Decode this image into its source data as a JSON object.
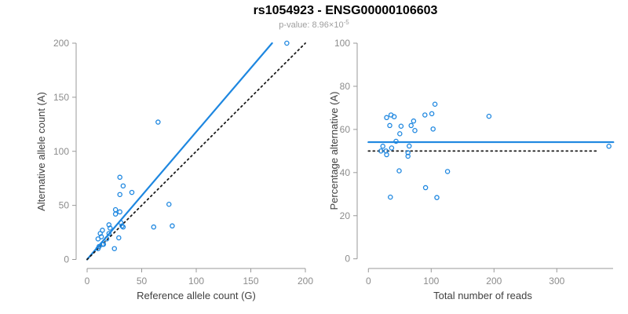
{
  "header": {
    "title": "rs1054923 - ENSG00000106603",
    "pvalue_prefix": "p-value: 8.96×10",
    "pvalue_exponent": "-5"
  },
  "colors": {
    "point": "#1E87E0",
    "fit_line": "#1E87E0",
    "identity_line": "#1A1A1A",
    "axis": "#999999",
    "tick_label": "#8C8C8C",
    "axis_title": "#404040",
    "title": "#000000",
    "subtitle": "#9E9E9E",
    "background": "#FFFFFF"
  },
  "chart_data": [
    {
      "type": "scatter",
      "panel": "left",
      "title": "",
      "xlabel": "Reference allele count (G)",
      "ylabel": "Alternative allele count (A)",
      "xlim": [
        0,
        200
      ],
      "ylim": [
        0,
        200
      ],
      "xticks": [
        0,
        50,
        100,
        150,
        200
      ],
      "yticks": [
        0,
        50,
        100,
        150,
        200
      ],
      "grid": false,
      "legend": null,
      "points": [
        [
          10,
          19
        ],
        [
          12,
          24
        ],
        [
          14,
          27
        ],
        [
          13,
          21
        ],
        [
          11,
          12
        ],
        [
          10,
          10
        ],
        [
          14,
          14
        ],
        [
          15,
          14
        ],
        [
          18,
          19
        ],
        [
          25,
          10
        ],
        [
          20,
          32
        ],
        [
          21,
          29
        ],
        [
          20,
          24
        ],
        [
          26,
          46
        ],
        [
          26,
          42
        ],
        [
          30,
          44
        ],
        [
          31,
          34
        ],
        [
          32,
          31
        ],
        [
          33,
          30
        ],
        [
          29,
          20
        ],
        [
          30,
          60
        ],
        [
          33,
          68
        ],
        [
          30,
          76
        ],
        [
          41,
          62
        ],
        [
          75,
          51
        ],
        [
          61,
          30
        ],
        [
          78,
          31
        ],
        [
          65,
          127
        ],
        [
          183,
          200
        ]
      ],
      "lines": [
        {
          "name": "fit-line",
          "style": "solid",
          "color": "#1E87E0",
          "x1": 0,
          "y1": 0,
          "x2": 169.5,
          "y2": 200
        },
        {
          "name": "identity-line",
          "style": "dotted",
          "color": "#1A1A1A",
          "x1": 0,
          "y1": 0,
          "x2": 200,
          "y2": 200
        }
      ]
    },
    {
      "type": "scatter",
      "panel": "right",
      "title": "",
      "xlabel": "Total number of reads",
      "ylabel": "Percentage alternative (A)",
      "xlim": [
        0,
        390
      ],
      "ylim": [
        0,
        100
      ],
      "xticks": [
        0,
        100,
        200,
        300
      ],
      "yticks": [
        0,
        20,
        40,
        60,
        80,
        100
      ],
      "grid": false,
      "legend": null,
      "points": [
        [
          29,
          65.5
        ],
        [
          36,
          66.7
        ],
        [
          41,
          65.9
        ],
        [
          34,
          61.8
        ],
        [
          23,
          52.2
        ],
        [
          20,
          50.0
        ],
        [
          28,
          50.0
        ],
        [
          29,
          48.3
        ],
        [
          37,
          51.4
        ],
        [
          35,
          28.6
        ],
        [
          52,
          61.5
        ],
        [
          50,
          58.0
        ],
        [
          44,
          54.5
        ],
        [
          72,
          63.9
        ],
        [
          68,
          61.8
        ],
        [
          74,
          59.5
        ],
        [
          65,
          52.3
        ],
        [
          63,
          49.2
        ],
        [
          63,
          47.6
        ],
        [
          49,
          40.8
        ],
        [
          90,
          66.7
        ],
        [
          101,
          67.3
        ],
        [
          106,
          71.7
        ],
        [
          103,
          60.2
        ],
        [
          126,
          40.5
        ],
        [
          91,
          33.0
        ],
        [
          109,
          28.4
        ],
        [
          192,
          66.1
        ],
        [
          383,
          52.2
        ]
      ],
      "lines": [
        {
          "name": "mean-line",
          "style": "solid",
          "color": "#1E87E0",
          "x1": 0,
          "y1": 54.1,
          "x2": 390,
          "y2": 54.1
        },
        {
          "name": "null-line",
          "style": "dotted",
          "color": "#1A1A1A",
          "x1": 0,
          "y1": 50,
          "x2": 364,
          "y2": 50
        }
      ]
    }
  ]
}
